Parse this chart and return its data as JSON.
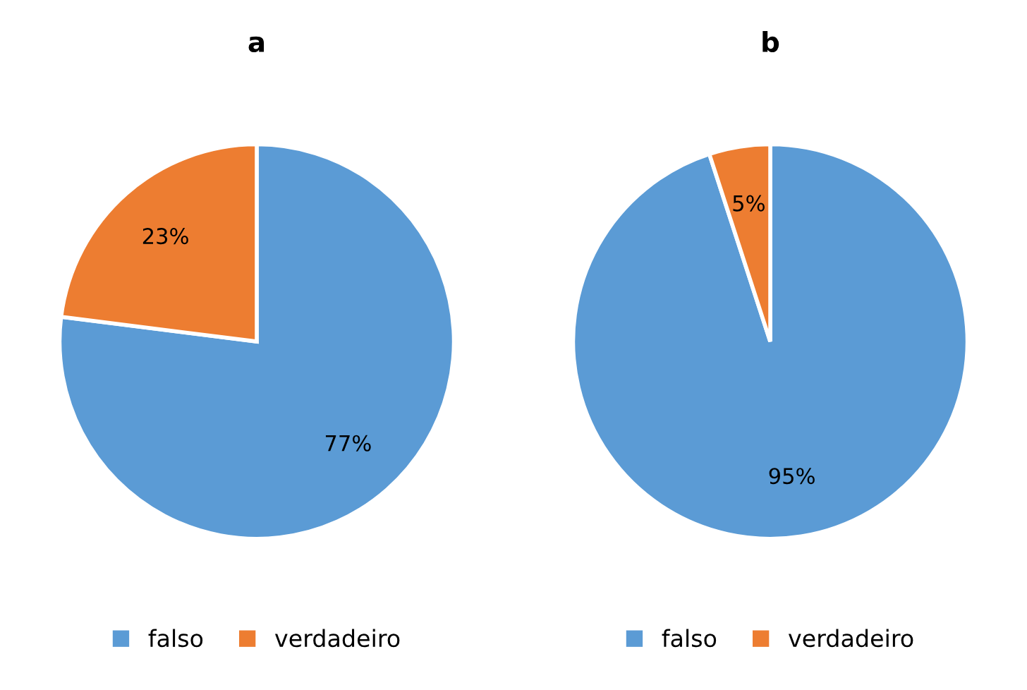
{
  "chart_data": [
    {
      "type": "pie",
      "title": "a",
      "categories": [
        "falso",
        "verdadeiro"
      ],
      "values": [
        77,
        23
      ],
      "colors": [
        "#5b9bd5",
        "#ed7d31"
      ],
      "value_labels": [
        "77%",
        "23%"
      ],
      "legend": "bottom"
    },
    {
      "type": "pie",
      "title": "b",
      "categories": [
        "falso",
        "verdadeiro"
      ],
      "values": [
        95,
        5
      ],
      "colors": [
        "#5b9bd5",
        "#ed7d31"
      ],
      "value_labels": [
        "95%",
        "5%"
      ],
      "legend": "bottom"
    }
  ]
}
